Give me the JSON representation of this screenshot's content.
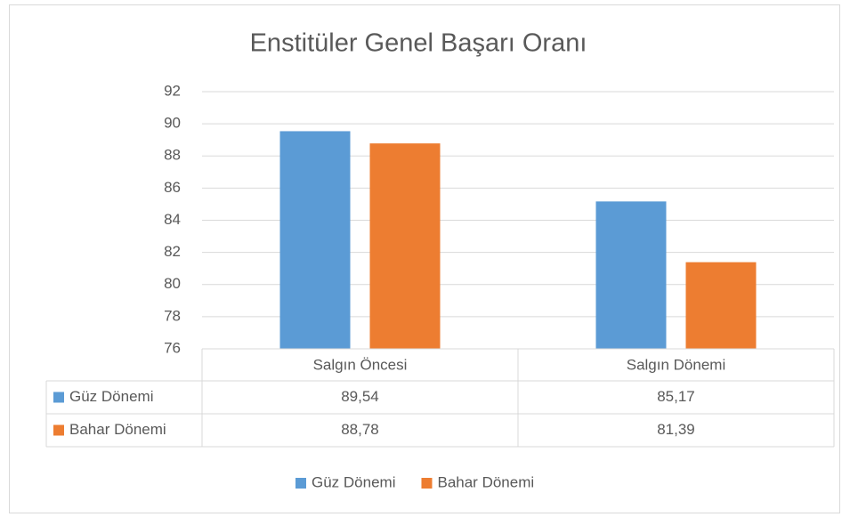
{
  "chart_data": {
    "type": "bar",
    "title": "Enstitüler Genel Başarı Oranı",
    "categories": [
      "Salgın Öncesi",
      "Salgın Dönemi"
    ],
    "series": [
      {
        "name": "Güz Dönemi",
        "color": "#5b9bd5",
        "values": [
          89.54,
          85.17
        ],
        "value_labels": [
          "89,54",
          "85,17"
        ]
      },
      {
        "name": "Bahar Dönemi",
        "color": "#ed7d31",
        "values": [
          88.78,
          81.39
        ],
        "value_labels": [
          "88,78",
          "81,39"
        ]
      }
    ],
    "ylim": [
      76,
      92
    ],
    "yticks": [
      76,
      78,
      80,
      82,
      84,
      86,
      88,
      90,
      92
    ],
    "grid": true,
    "legend": "bottom",
    "data_table": true
  }
}
